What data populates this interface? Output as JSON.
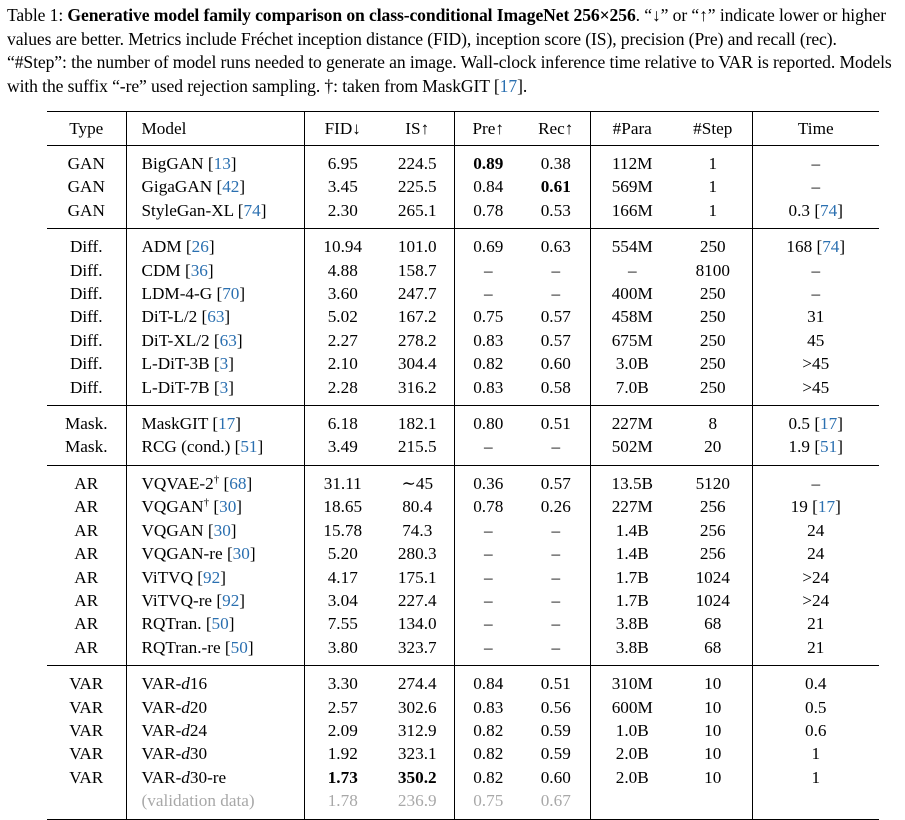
{
  "caption": {
    "label": "Table 1:",
    "title": "Generative model family comparison on class-conditional ImageNet 256×256",
    "text_1": ". “↓” or “↑” indicate lower or higher values are better. Metrics include Fréchet inception distance (FID), inception score (IS), precision (Pre) and recall (rec). “#Step”: the number of model runs needed to generate an image. Wall-clock inference time relative to VAR is reported. Models with the suffix “-re” used rejection sampling. †: taken from MaskGIT [",
    "ref": "17",
    "text_2": "]."
  },
  "headers": {
    "type": "Type",
    "model": "Model",
    "fid": "FID↓",
    "is": "IS↑",
    "pre": "Pre↑",
    "rec": "Rec↑",
    "para": "#Para",
    "step": "#Step",
    "time": "Time"
  },
  "groups": [
    [
      {
        "type": "GAN",
        "model": "BigGAN",
        "ref": "13",
        "fid": "6.95",
        "is": "224.5",
        "pre": "0.89",
        "rec": "0.38",
        "para": "112M",
        "step": "1",
        "time": "–",
        "bold": [
          "pre"
        ]
      },
      {
        "type": "GAN",
        "model": "GigaGAN",
        "ref": "42",
        "fid": "3.45",
        "is": "225.5",
        "pre": "0.84",
        "rec": "0.61",
        "para": "569M",
        "step": "1",
        "time": "–",
        "bold": [
          "rec"
        ]
      },
      {
        "type": "GAN",
        "model": "StyleGan-XL",
        "ref": "74",
        "fid": "2.30",
        "is": "265.1",
        "pre": "0.78",
        "rec": "0.53",
        "para": "166M",
        "step": "1",
        "time": "0.3",
        "time_ref": "74"
      }
    ],
    [
      {
        "type": "Diff.",
        "model": "ADM",
        "ref": "26",
        "fid": "10.94",
        "is": "101.0",
        "pre": "0.69",
        "rec": "0.63",
        "para": "554M",
        "step": "250",
        "time": "168",
        "time_ref": "74"
      },
      {
        "type": "Diff.",
        "model": "CDM",
        "ref": "36",
        "fid": "4.88",
        "is": "158.7",
        "pre": "–",
        "rec": "–",
        "para": "–",
        "step": "8100",
        "time": "–"
      },
      {
        "type": "Diff.",
        "model": "LDM-4-G",
        "ref": "70",
        "fid": "3.60",
        "is": "247.7",
        "pre": "–",
        "rec": "–",
        "para": "400M",
        "step": "250",
        "time": "–"
      },
      {
        "type": "Diff.",
        "model": "DiT-L/2",
        "ref": "63",
        "fid": "5.02",
        "is": "167.2",
        "pre": "0.75",
        "rec": "0.57",
        "para": "458M",
        "step": "250",
        "time": "31"
      },
      {
        "type": "Diff.",
        "model": "DiT-XL/2",
        "ref": "63",
        "fid": "2.27",
        "is": "278.2",
        "pre": "0.83",
        "rec": "0.57",
        "para": "675M",
        "step": "250",
        "time": "45"
      },
      {
        "type": "Diff.",
        "model": "L-DiT-3B",
        "ref": "3",
        "fid": "2.10",
        "is": "304.4",
        "pre": "0.82",
        "rec": "0.60",
        "para": "3.0B",
        "step": "250",
        "time": ">45"
      },
      {
        "type": "Diff.",
        "model": "L-DiT-7B",
        "ref": "3",
        "fid": "2.28",
        "is": "316.2",
        "pre": "0.83",
        "rec": "0.58",
        "para": "7.0B",
        "step": "250",
        "time": ">45"
      }
    ],
    [
      {
        "type": "Mask.",
        "model": "MaskGIT",
        "ref": "17",
        "fid": "6.18",
        "is": "182.1",
        "pre": "0.80",
        "rec": "0.51",
        "para": "227M",
        "step": "8",
        "time": "0.5",
        "time_ref": "17"
      },
      {
        "type": "Mask.",
        "model": "RCG (cond.)",
        "ref": "51",
        "fid": "3.49",
        "is": "215.5",
        "pre": "–",
        "rec": "–",
        "para": "502M",
        "step": "20",
        "time": "1.9",
        "time_ref": "51"
      }
    ],
    [
      {
        "type": "AR",
        "model": "VQVAE-2",
        "dagger": "†",
        "ref": "68",
        "fid": "31.11",
        "is": "∼45",
        "pre": "0.36",
        "rec": "0.57",
        "para": "13.5B",
        "step": "5120",
        "time": "–"
      },
      {
        "type": "AR",
        "model": "VQGAN",
        "dagger": "†",
        "ref": "30",
        "fid": "18.65",
        "is": "80.4",
        "pre": "0.78",
        "rec": "0.26",
        "para": "227M",
        "step": "256",
        "time": "19",
        "time_ref": "17"
      },
      {
        "type": "AR",
        "model": "VQGAN",
        "ref": "30",
        "fid": "15.78",
        "is": "74.3",
        "pre": "–",
        "rec": "–",
        "para": "1.4B",
        "step": "256",
        "time": "24"
      },
      {
        "type": "AR",
        "model": "VQGAN-re",
        "ref": "30",
        "fid": "5.20",
        "is": "280.3",
        "pre": "–",
        "rec": "–",
        "para": "1.4B",
        "step": "256",
        "time": "24"
      },
      {
        "type": "AR",
        "model": "ViTVQ",
        "ref": "92",
        "fid": "4.17",
        "is": "175.1",
        "pre": "–",
        "rec": "–",
        "para": "1.7B",
        "step": "1024",
        "time": ">24"
      },
      {
        "type": "AR",
        "model": "ViTVQ-re",
        "ref": "92",
        "fid": "3.04",
        "is": "227.4",
        "pre": "–",
        "rec": "–",
        "para": "1.7B",
        "step": "1024",
        "time": ">24"
      },
      {
        "type": "AR",
        "model": "RQTran.",
        "ref": "50",
        "fid": "7.55",
        "is": "134.0",
        "pre": "–",
        "rec": "–",
        "para": "3.8B",
        "step": "68",
        "time": "21"
      },
      {
        "type": "AR",
        "model": "RQTran.-re",
        "ref": "50",
        "fid": "3.80",
        "is": "323.7",
        "pre": "–",
        "rec": "–",
        "para": "3.8B",
        "step": "68",
        "time": "21"
      }
    ],
    [
      {
        "type": "VAR",
        "model": "VAR-",
        "model_it": "d",
        "model_suffix": "16",
        "fid": "3.30",
        "is": "274.4",
        "pre": "0.84",
        "rec": "0.51",
        "para": "310M",
        "step": "10",
        "time": "0.4"
      },
      {
        "type": "VAR",
        "model": "VAR-",
        "model_it": "d",
        "model_suffix": "20",
        "fid": "2.57",
        "is": "302.6",
        "pre": "0.83",
        "rec": "0.56",
        "para": "600M",
        "step": "10",
        "time": "0.5"
      },
      {
        "type": "VAR",
        "model": "VAR-",
        "model_it": "d",
        "model_suffix": "24",
        "fid": "2.09",
        "is": "312.9",
        "pre": "0.82",
        "rec": "0.59",
        "para": "1.0B",
        "step": "10",
        "time": "0.6"
      },
      {
        "type": "VAR",
        "model": "VAR-",
        "model_it": "d",
        "model_suffix": "30",
        "fid": "1.92",
        "is": "323.1",
        "pre": "0.82",
        "rec": "0.59",
        "para": "2.0B",
        "step": "10",
        "time": "1"
      },
      {
        "type": "VAR",
        "model": "VAR-",
        "model_it": "d",
        "model_suffix": "30-re",
        "fid": "1.73",
        "is": "350.2",
        "pre": "0.82",
        "rec": "0.60",
        "para": "2.0B",
        "step": "10",
        "time": "1",
        "bold": [
          "fid",
          "is"
        ]
      },
      {
        "type": "",
        "model": "(validation data)",
        "fid": "1.78",
        "is": "236.9",
        "pre": "0.75",
        "rec": "0.67",
        "para": "",
        "step": "",
        "time": "",
        "gray": true
      }
    ]
  ]
}
